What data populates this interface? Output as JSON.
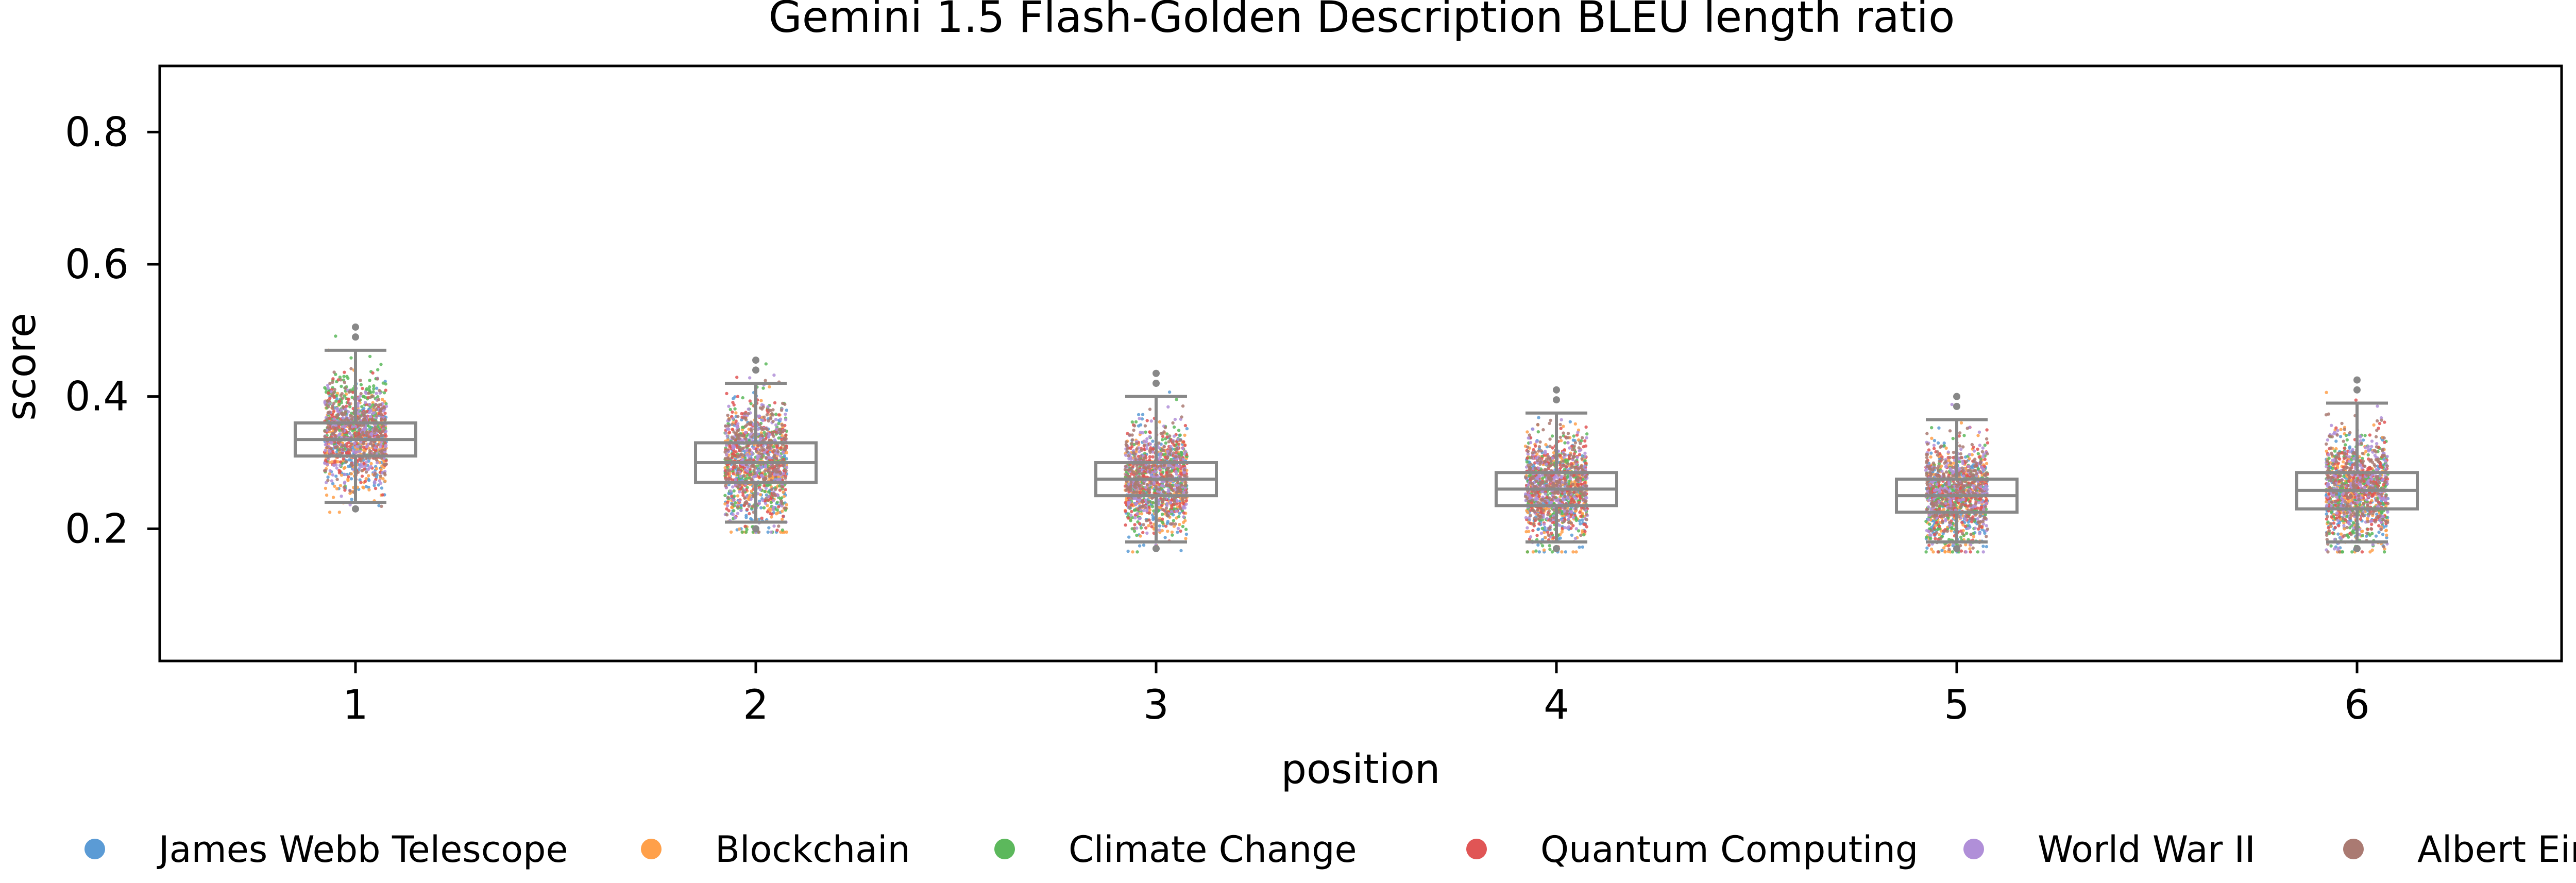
{
  "chart_data": {
    "type": "scatter",
    "title": "Gemini 1.5 Flash-Golden Description BLEU length ratio",
    "xlabel": "position",
    "ylabel": "score",
    "categories": [
      "1",
      "2",
      "3",
      "4",
      "5",
      "6"
    ],
    "ylim": [
      0.0,
      0.9
    ],
    "yticks": [
      0.2,
      0.4,
      0.6,
      0.8
    ],
    "ytick_labels": [
      "0.2",
      "0.4",
      "0.6",
      "0.8"
    ],
    "grid": false,
    "legend_position": "bottom",
    "series": [
      {
        "name": "James Webb Telescope",
        "color": "#5b9bd5"
      },
      {
        "name": "Blockchain",
        "color": "#ffa04a"
      },
      {
        "name": "Climate Change",
        "color": "#5cb85c"
      },
      {
        "name": "Quantum Computing",
        "color": "#e05555"
      },
      {
        "name": "World War II",
        "color": "#b08fd8"
      },
      {
        "name": "Albert Einstein",
        "color": "#aa7a72"
      }
    ],
    "boxes": [
      {
        "position": "1",
        "whisker_low": 0.24,
        "q1": 0.31,
        "median": 0.335,
        "q3": 0.36,
        "whisker_high": 0.47
      },
      {
        "position": "2",
        "whisker_low": 0.21,
        "q1": 0.27,
        "median": 0.3,
        "q3": 0.33,
        "whisker_high": 0.42
      },
      {
        "position": "3",
        "whisker_low": 0.18,
        "q1": 0.25,
        "median": 0.275,
        "q3": 0.3,
        "whisker_high": 0.4
      },
      {
        "position": "4",
        "whisker_low": 0.18,
        "q1": 0.235,
        "median": 0.26,
        "q3": 0.285,
        "whisker_high": 0.375
      },
      {
        "position": "5",
        "whisker_low": 0.18,
        "q1": 0.225,
        "median": 0.25,
        "q3": 0.275,
        "whisker_high": 0.365
      },
      {
        "position": "6",
        "whisker_low": 0.18,
        "q1": 0.23,
        "median": 0.258,
        "q3": 0.285,
        "whisker_high": 0.39
      }
    ],
    "box_color": "#888888",
    "outlier_color": "#888888"
  }
}
